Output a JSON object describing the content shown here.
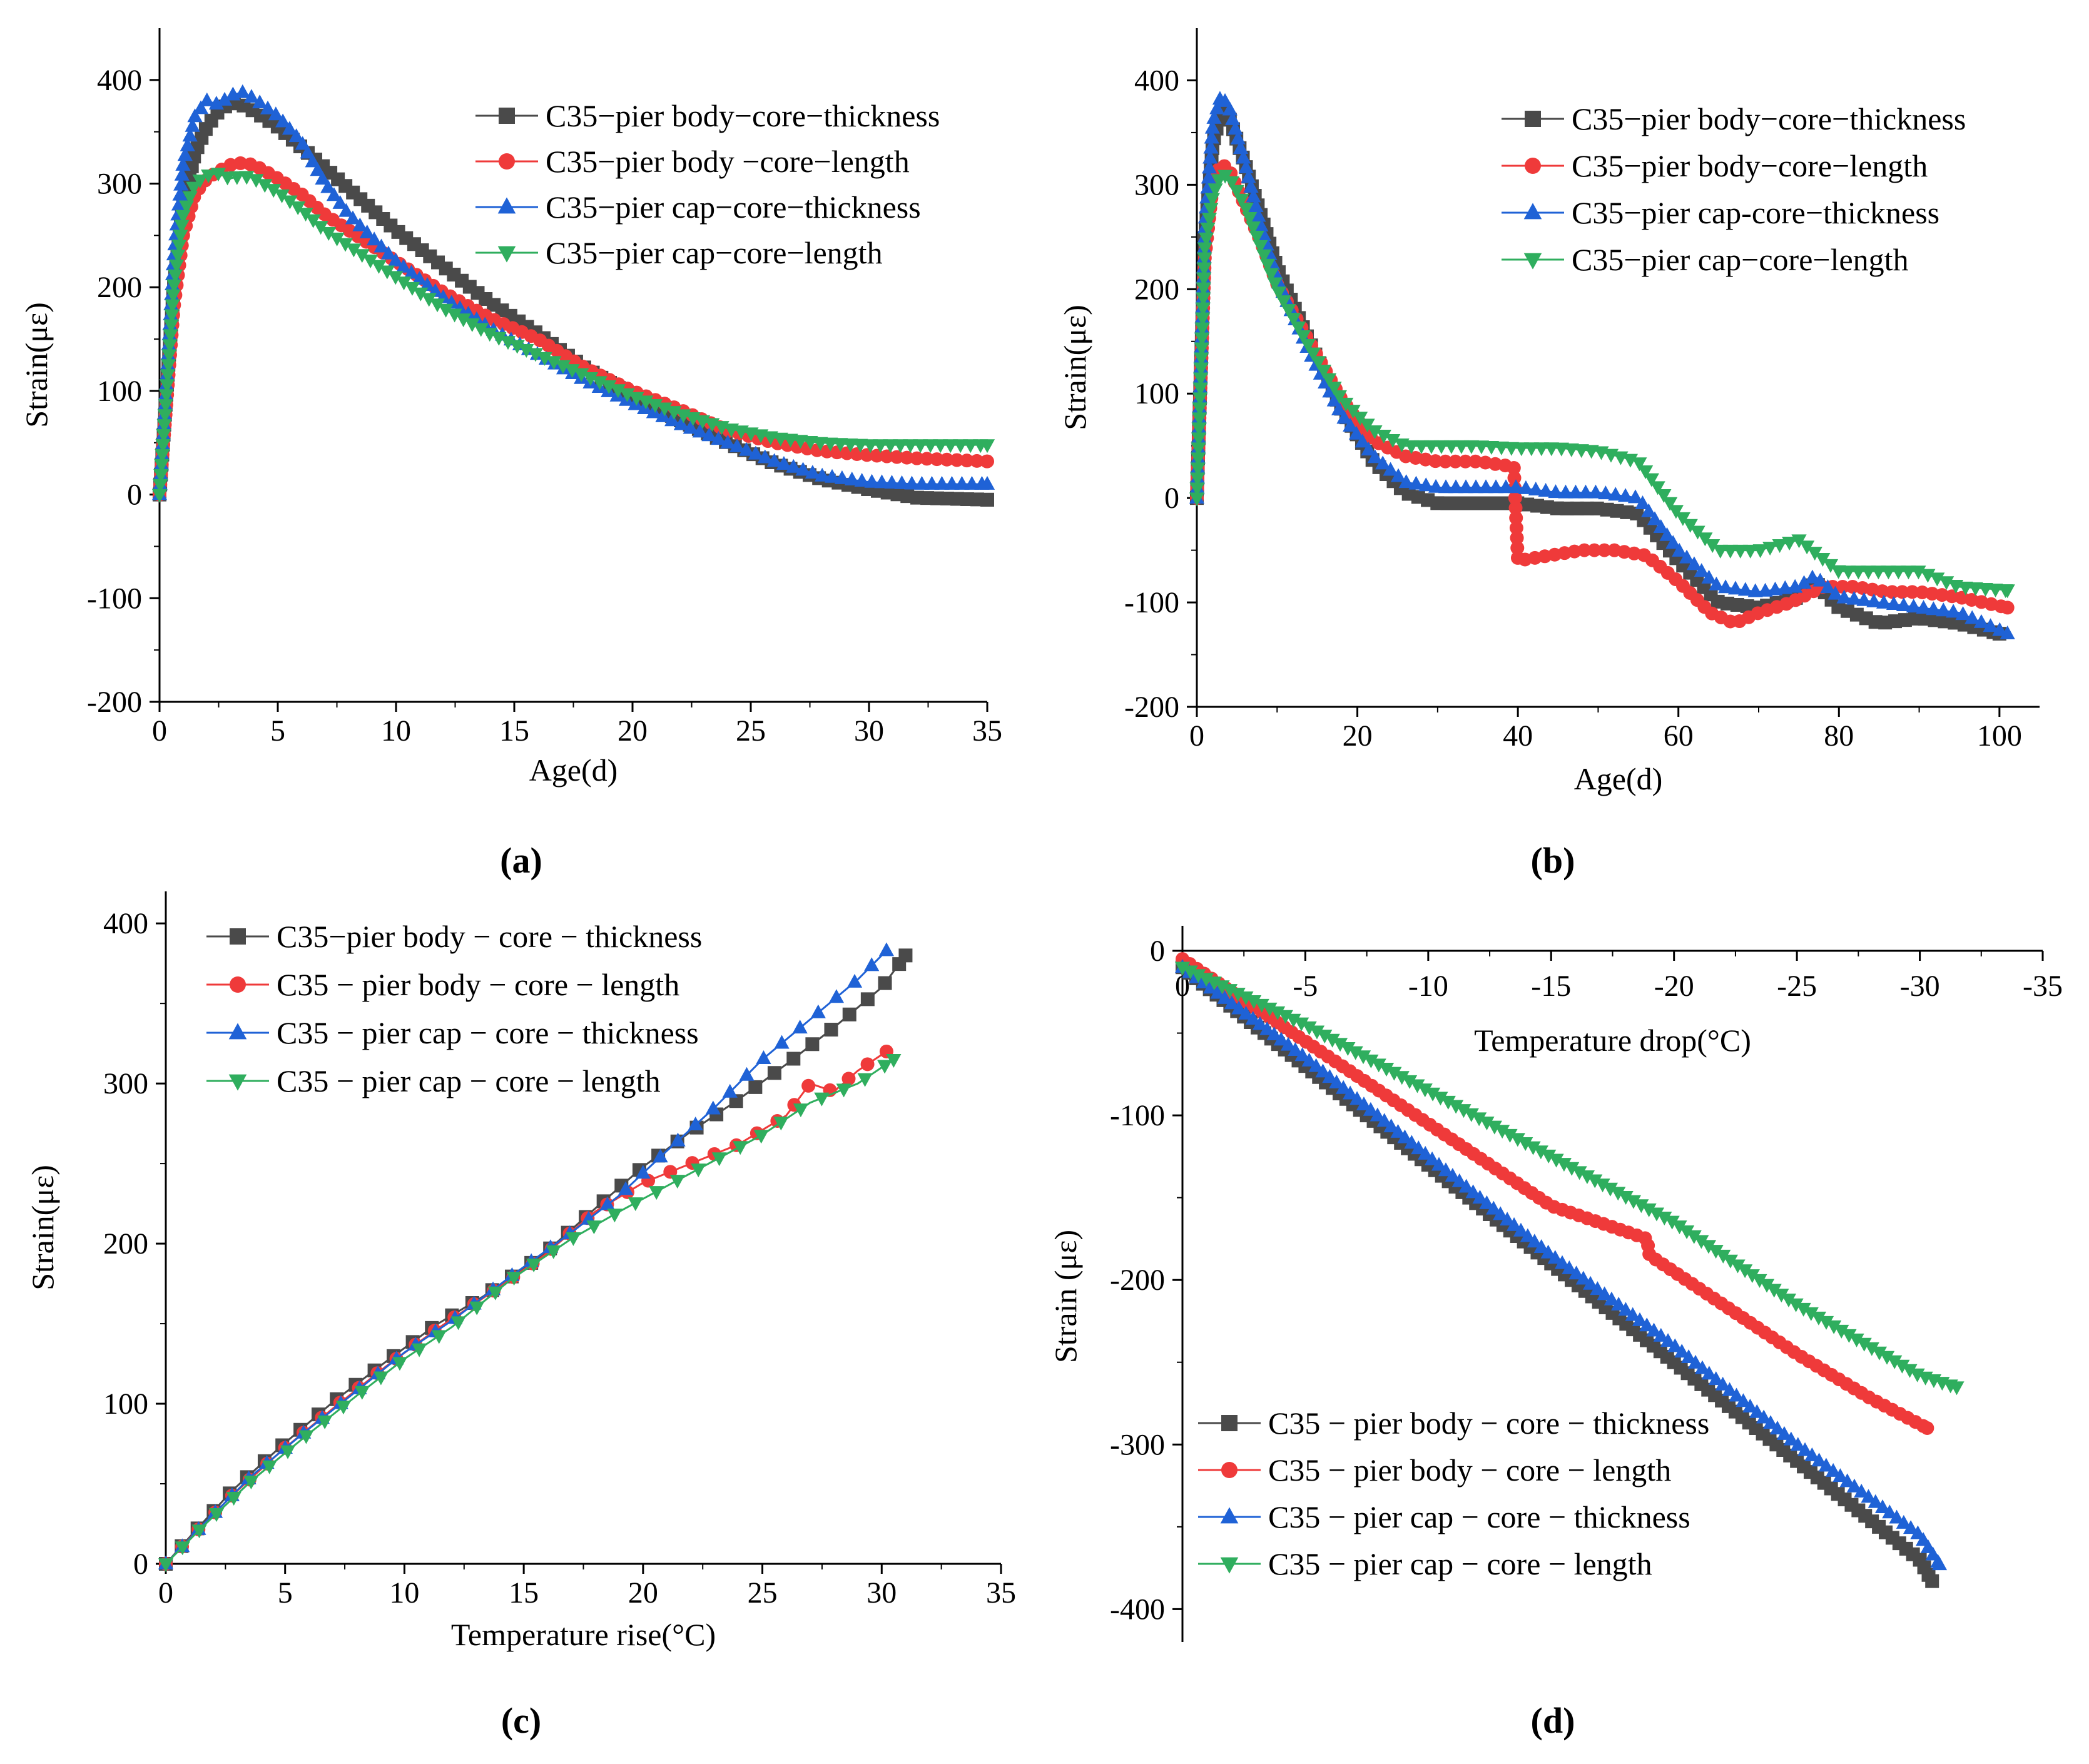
{
  "figure": {
    "panel_labels": [
      "(a)",
      "(b)",
      "(c)",
      "(d)"
    ],
    "colors": {
      "C35-pier body-core-thickness": "#4a4a4a",
      "C35-pier body-core-length": "#ef3a3a",
      "C35-pier cap-core-thickness": "#1f62d6",
      "C35-pier cap-core-length": "#2fae5e"
    }
  },
  "chart_data": [
    {
      "type": "line",
      "panel": "(a)",
      "xlabel": "Age(d)",
      "ylabel": "Strain(με)",
      "xlim": [
        0,
        35
      ],
      "ylim": [
        -200,
        450
      ],
      "xticks": [
        0,
        5,
        10,
        15,
        20,
        25,
        30,
        35
      ],
      "yticks": [
        -200,
        -100,
        0,
        100,
        200,
        300,
        400
      ],
      "legend_position": "top-right",
      "series": [
        {
          "name": "C35−pier body−core−thickness",
          "color": "#4a4a4a",
          "marker": "square",
          "x": [
            0,
            0.3,
            0.6,
            1,
            1.5,
            2,
            2.5,
            3,
            3.5,
            4,
            5,
            6,
            7,
            8,
            9,
            10,
            12,
            14,
            16,
            18,
            20,
            22,
            24,
            26,
            28,
            30,
            32,
            35
          ],
          "y": [
            0,
            100,
            200,
            280,
            330,
            355,
            370,
            378,
            376,
            370,
            355,
            335,
            315,
            295,
            275,
            255,
            220,
            185,
            155,
            122,
            95,
            72,
            50,
            30,
            15,
            5,
            -3,
            -5
          ]
        },
        {
          "name": "C35−pier body −core−length",
          "color": "#ef3a3a",
          "marker": "circle",
          "x": [
            0,
            0.3,
            0.6,
            1,
            1.5,
            2,
            2.5,
            3,
            3.5,
            4,
            5,
            6,
            7,
            8,
            10,
            12,
            14,
            16,
            18,
            20,
            22,
            24,
            26,
            28,
            30,
            32,
            35
          ],
          "y": [
            0,
            90,
            180,
            250,
            290,
            305,
            312,
            318,
            320,
            318,
            305,
            290,
            270,
            255,
            225,
            195,
            170,
            150,
            122,
            100,
            82,
            62,
            50,
            42,
            38,
            35,
            32
          ]
        },
        {
          "name": "C35−pier cap−core−thickness",
          "color": "#1f62d6",
          "marker": "triangle-up",
          "x": [
            0,
            0.3,
            0.6,
            1,
            1.5,
            2,
            2.5,
            3,
            3.5,
            4,
            5,
            6,
            7,
            8,
            10,
            12,
            14,
            16,
            18,
            20,
            22,
            24,
            26,
            28,
            30,
            32,
            35
          ],
          "y": [
            0,
            110,
            230,
            320,
            365,
            380,
            376,
            385,
            388,
            382,
            365,
            340,
            300,
            270,
            225,
            190,
            160,
            135,
            110,
            88,
            68,
            50,
            32,
            18,
            12,
            10,
            10
          ]
        },
        {
          "name": "C35−pier cap−core−length",
          "color": "#2fae5e",
          "marker": "triangle-down",
          "x": [
            0,
            0.3,
            0.6,
            1,
            1.5,
            2,
            2.5,
            3,
            3.5,
            4,
            5,
            6,
            7,
            8,
            10,
            12,
            14,
            16,
            18,
            20,
            22,
            24,
            26,
            28,
            30,
            32,
            35
          ],
          "y": [
            0,
            100,
            200,
            270,
            300,
            308,
            310,
            305,
            308,
            305,
            292,
            275,
            255,
            240,
            210,
            180,
            155,
            135,
            115,
            95,
            78,
            64,
            55,
            50,
            48,
            48,
            48
          ]
        }
      ]
    },
    {
      "type": "line",
      "panel": "(b)",
      "xlabel": "Age(d)",
      "ylabel": "Strain(με)",
      "xlim": [
        0,
        105
      ],
      "ylim": [
        -200,
        450
      ],
      "xticks": [
        0,
        20,
        40,
        60,
        80,
        100
      ],
      "yticks": [
        -200,
        -100,
        0,
        100,
        200,
        300,
        400
      ],
      "legend_position": "top-right",
      "series": [
        {
          "name": "C35−pier body−core−thickness",
          "color": "#4a4a4a",
          "marker": "square",
          "x": [
            0,
            1,
            2,
            3,
            4,
            6,
            8,
            10,
            14,
            18,
            22,
            26,
            30,
            35,
            40,
            45,
            50,
            55,
            60,
            65,
            70,
            75,
            77,
            80,
            85,
            90,
            95,
            100
          ],
          "y": [
            0,
            250,
            340,
            370,
            365,
            320,
            270,
            220,
            150,
            85,
            35,
            5,
            -5,
            -5,
            -5,
            -10,
            -10,
            -15,
            -60,
            -100,
            -105,
            -95,
            -80,
            -105,
            -120,
            -115,
            -120,
            -130
          ]
        },
        {
          "name": "C35−pier body−core−length",
          "color": "#ef3a3a",
          "marker": "circle",
          "x": [
            0,
            1,
            2,
            3,
            4,
            6,
            8,
            10,
            14,
            18,
            22,
            26,
            30,
            35,
            39.5,
            40,
            44,
            48,
            52,
            56,
            60,
            64,
            67,
            70,
            74,
            78,
            82,
            86,
            90,
            95,
            101
          ],
          "y": [
            0,
            230,
            300,
            320,
            315,
            280,
            245,
            205,
            150,
            95,
            55,
            40,
            35,
            35,
            30,
            -60,
            -55,
            -50,
            -50,
            -55,
            -80,
            -110,
            -120,
            -110,
            -100,
            -85,
            -85,
            -90,
            -90,
            -95,
            -105
          ]
        },
        {
          "name": "C35−pier cap-core−thickness",
          "color": "#1f62d6",
          "marker": "triangle-up",
          "x": [
            0,
            1,
            2,
            3,
            4,
            6,
            8,
            10,
            14,
            18,
            22,
            26,
            30,
            35,
            40,
            45,
            50,
            55,
            60,
            65,
            70,
            75,
            77,
            80,
            85,
            90,
            95,
            101
          ],
          "y": [
            0,
            260,
            360,
            385,
            375,
            320,
            260,
            210,
            140,
            80,
            40,
            15,
            10,
            10,
            10,
            5,
            5,
            0,
            -50,
            -85,
            -90,
            -85,
            -75,
            -95,
            -100,
            -105,
            -110,
            -130
          ]
        },
        {
          "name": "C35−pier cap−core−length",
          "color": "#2fae5e",
          "marker": "triangle-down",
          "x": [
            0,
            1,
            2,
            3,
            4,
            6,
            8,
            10,
            14,
            18,
            22,
            26,
            30,
            35,
            40,
            45,
            50,
            55,
            60,
            65,
            70,
            75,
            80,
            85,
            90,
            95,
            101
          ],
          "y": [
            0,
            240,
            290,
            310,
            308,
            280,
            240,
            200,
            145,
            95,
            65,
            50,
            50,
            50,
            48,
            48,
            45,
            35,
            -15,
            -50,
            -50,
            -40,
            -70,
            -70,
            -70,
            -85,
            -88
          ]
        }
      ]
    },
    {
      "type": "line",
      "panel": "(c)",
      "xlabel": "Temperature rise(°C)",
      "ylabel": "Strain(με)",
      "xlim": [
        0,
        35
      ],
      "ylim": [
        0,
        420
      ],
      "xticks": [
        0,
        5,
        10,
        15,
        20,
        25,
        30,
        35
      ],
      "yticks": [
        0,
        100,
        200,
        300,
        400
      ],
      "legend_position": "top-left",
      "series": [
        {
          "name": "C35−pier body − core − thickness",
          "color": "#4a4a4a",
          "marker": "square",
          "x": [
            0,
            1.2,
            2.8,
            4.8,
            7,
            9.2,
            11.3,
            13.3,
            15.8,
            18,
            20,
            22,
            24,
            26,
            28,
            30,
            31
          ],
          "y": [
            0,
            20,
            46,
            73,
            101,
            126,
            149,
            167,
            193,
            222,
            248,
            270,
            290,
            312,
            335,
            360,
            380
          ]
        },
        {
          "name": "C35 − pier body − core − length",
          "color": "#ef3a3a",
          "marker": "circle",
          "x": [
            0,
            1.2,
            2.8,
            4.8,
            7,
            9.2,
            11.3,
            13.3,
            15.8,
            18,
            20,
            22,
            24,
            26,
            27,
            28,
            29,
            30.2
          ],
          "y": [
            0,
            19,
            43,
            70,
            97,
            123,
            146,
            166,
            192,
            220,
            238,
            250,
            262,
            280,
            300,
            295,
            308,
            320
          ]
        },
        {
          "name": "C35 − pier cap − core − thickness",
          "color": "#1f62d6",
          "marker": "triangle-up",
          "x": [
            0,
            1.6,
            3.6,
            5.8,
            8,
            10,
            12,
            14.5,
            17,
            19,
            21,
            23,
            25,
            27,
            29,
            30.2
          ],
          "y": [
            0,
            25,
            55,
            82,
            108,
            132,
            152,
            180,
            207,
            230,
            258,
            285,
            315,
            340,
            365,
            383
          ]
        },
        {
          "name": "C35 − pier cap − core − length",
          "color": "#2fae5e",
          "marker": "triangle-down",
          "x": [
            0,
            1.6,
            3.6,
            5.8,
            8,
            10,
            12,
            14.5,
            17,
            19,
            21,
            23,
            25,
            27,
            29,
            30.5
          ],
          "y": [
            0,
            24,
            52,
            79,
            105,
            128,
            148,
            178,
            203,
            220,
            236,
            252,
            268,
            288,
            300,
            315
          ]
        }
      ]
    },
    {
      "type": "line",
      "panel": "(d)",
      "xlabel": "Temperature drop(°C)",
      "ylabel": "Strain (με)",
      "xlim": [
        0,
        -35
      ],
      "ylim": [
        -420,
        0
      ],
      "xticks": [
        0,
        -5,
        -10,
        -15,
        -20,
        -25,
        -30,
        -35
      ],
      "yticks": [
        0,
        -100,
        -200,
        -300,
        -400
      ],
      "legend_position": "bottom-left",
      "series": [
        {
          "name": "C35 − pier body − core − thickness",
          "color": "#4a4a4a",
          "marker": "square",
          "x": [
            0,
            -5,
            -10,
            -15,
            -20,
            -25,
            -30,
            -30.5
          ],
          "y": [
            -10,
            -70,
            -130,
            -190,
            -250,
            -310,
            -370,
            -383
          ]
        },
        {
          "name": "C35 − pier body − core − length",
          "color": "#ef3a3a",
          "marker": "circle",
          "x": [
            0,
            -5,
            -10,
            -15,
            -18.9,
            -19,
            -22,
            -25,
            -28,
            -30.3
          ],
          "y": [
            -5,
            -55,
            -105,
            -155,
            -175,
            -185,
            -215,
            -245,
            -272,
            -290
          ]
        },
        {
          "name": "C35 − pier cap − core − thickness",
          "color": "#1f62d6",
          "marker": "triangle-up",
          "x": [
            0,
            -5,
            -10,
            -15,
            -20,
            -25,
            -30,
            -30.8
          ],
          "y": [
            -10,
            -65,
            -125,
            -185,
            -240,
            -300,
            -355,
            -373
          ]
        },
        {
          "name": "C35 − pier cap − core − length",
          "color": "#2fae5e",
          "marker": "triangle-down",
          "x": [
            0,
            -5,
            -10,
            -15,
            -20,
            -25,
            -30,
            -31.5
          ],
          "y": [
            -10,
            -45,
            -85,
            -125,
            -165,
            -215,
            -258,
            -265
          ]
        }
      ]
    }
  ]
}
